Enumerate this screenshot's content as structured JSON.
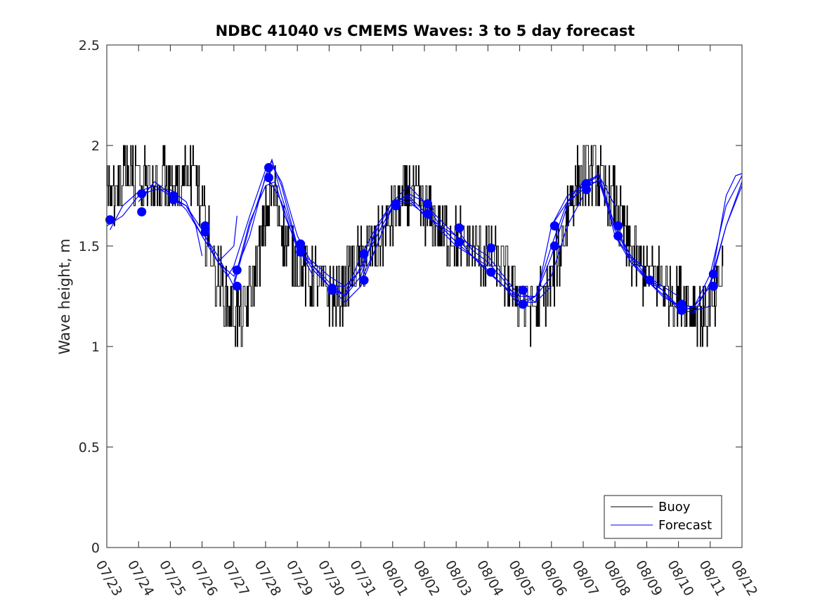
{
  "chart_data": {
    "type": "line",
    "title": "NDBC 41040 vs CMEMS Waves: 3 to 5 day forecast",
    "xlabel": "",
    "ylabel": "Wave height, m",
    "xlim_days": [
      0,
      20
    ],
    "ylim": [
      0,
      2.5
    ],
    "xticks": [
      "07/23",
      "07/24",
      "07/25",
      "07/26",
      "07/27",
      "07/28",
      "07/29",
      "07/30",
      "07/31",
      "08/01",
      "08/02",
      "08/03",
      "08/04",
      "08/05",
      "08/06",
      "08/07",
      "08/08",
      "08/09",
      "08/10",
      "08/11",
      "08/12"
    ],
    "yticks": [
      0,
      0.5,
      1,
      1.5,
      2,
      2.5
    ],
    "ytick_labels": [
      "0",
      "0.5",
      "1",
      "1.5",
      "2",
      "2.5"
    ],
    "grid": false,
    "legend": {
      "position": "bottom-right",
      "entries": [
        {
          "label": "Buoy",
          "color": "#000000"
        },
        {
          "label": "Forecast",
          "color": "#0000ff"
        }
      ]
    },
    "colors": {
      "buoy": "#000000",
      "forecast": "#0000ff"
    },
    "buoy_trend": [
      [
        0.0,
        1.75
      ],
      [
        0.3,
        1.78
      ],
      [
        0.6,
        1.85
      ],
      [
        1.0,
        1.85
      ],
      [
        1.5,
        1.8
      ],
      [
        2.0,
        1.82
      ],
      [
        2.5,
        1.85
      ],
      [
        2.8,
        1.85
      ],
      [
        3.0,
        1.65
      ],
      [
        3.3,
        1.45
      ],
      [
        3.6,
        1.3
      ],
      [
        3.9,
        1.2
      ],
      [
        4.2,
        1.12
      ],
      [
        4.5,
        1.25
      ],
      [
        4.8,
        1.45
      ],
      [
        5.1,
        1.75
      ],
      [
        5.3,
        1.75
      ],
      [
        5.6,
        1.55
      ],
      [
        6.0,
        1.42
      ],
      [
        6.4,
        1.35
      ],
      [
        6.8,
        1.3
      ],
      [
        7.2,
        1.25
      ],
      [
        7.5,
        1.3
      ],
      [
        7.8,
        1.4
      ],
      [
        8.1,
        1.45
      ],
      [
        8.5,
        1.5
      ],
      [
        8.8,
        1.6
      ],
      [
        9.2,
        1.7
      ],
      [
        9.6,
        1.75
      ],
      [
        10.0,
        1.68
      ],
      [
        10.4,
        1.6
      ],
      [
        10.8,
        1.55
      ],
      [
        11.2,
        1.52
      ],
      [
        11.6,
        1.48
      ],
      [
        12.0,
        1.45
      ],
      [
        12.4,
        1.4
      ],
      [
        12.8,
        1.3
      ],
      [
        13.2,
        1.2
      ],
      [
        13.6,
        1.2
      ],
      [
        14.0,
        1.32
      ],
      [
        14.3,
        1.5
      ],
      [
        14.6,
        1.75
      ],
      [
        15.0,
        1.85
      ],
      [
        15.3,
        1.88
      ],
      [
        15.6,
        1.8
      ],
      [
        16.0,
        1.7
      ],
      [
        16.4,
        1.5
      ],
      [
        16.8,
        1.4
      ],
      [
        17.2,
        1.35
      ],
      [
        17.6,
        1.3
      ],
      [
        18.0,
        1.25
      ],
      [
        18.4,
        1.2
      ],
      [
        18.8,
        1.15
      ],
      [
        19.1,
        1.2
      ],
      [
        19.4,
        1.4
      ]
    ],
    "forecast_runs": [
      [
        [
          0.0,
          1.6
        ],
        [
          0.5,
          1.65
        ],
        [
          1.0,
          1.75
        ],
        [
          1.5,
          1.78
        ],
        [
          2.0,
          1.78
        ],
        [
          2.5,
          1.72
        ],
        [
          2.8,
          1.6
        ],
        [
          3.0,
          1.45
        ]
      ],
      [
        [
          0.1,
          1.58
        ],
        [
          0.5,
          1.7
        ],
        [
          1.0,
          1.77
        ],
        [
          1.5,
          1.8
        ],
        [
          2.0,
          1.75
        ],
        [
          2.5,
          1.7
        ],
        [
          3.0,
          1.55
        ],
        [
          3.5,
          1.42
        ],
        [
          4.0,
          1.5
        ],
        [
          4.1,
          1.65
        ]
      ],
      [
        [
          1.0,
          1.72
        ],
        [
          1.5,
          1.82
        ],
        [
          2.0,
          1.76
        ],
        [
          2.5,
          1.68
        ],
        [
          3.0,
          1.55
        ],
        [
          3.5,
          1.42
        ],
        [
          3.8,
          1.35
        ],
        [
          4.0,
          1.4
        ],
        [
          4.5,
          1.65
        ],
        [
          5.0,
          1.88
        ],
        [
          5.2,
          1.92
        ],
        [
          5.5,
          1.8
        ],
        [
          6.0,
          1.5
        ],
        [
          6.5,
          1.35
        ]
      ],
      [
        [
          2.0,
          1.74
        ],
        [
          2.5,
          1.7
        ],
        [
          3.0,
          1.58
        ],
        [
          3.5,
          1.42
        ],
        [
          4.0,
          1.35
        ],
        [
          4.5,
          1.55
        ],
        [
          5.0,
          1.85
        ],
        [
          5.2,
          1.93
        ],
        [
          5.5,
          1.75
        ],
        [
          6.0,
          1.5
        ],
        [
          6.5,
          1.38
        ],
        [
          7.0,
          1.3
        ],
        [
          7.5,
          1.3
        ]
      ],
      [
        [
          3.0,
          1.57
        ],
        [
          3.5,
          1.45
        ],
        [
          4.0,
          1.3
        ],
        [
          4.5,
          1.6
        ],
        [
          5.0,
          1.84
        ],
        [
          5.2,
          1.9
        ],
        [
          5.5,
          1.82
        ],
        [
          6.0,
          1.55
        ],
        [
          6.5,
          1.4
        ],
        [
          7.0,
          1.32
        ],
        [
          7.5,
          1.25
        ],
        [
          8.0,
          1.35
        ],
        [
          8.5,
          1.6
        ]
      ],
      [
        [
          4.0,
          1.32
        ],
        [
          4.5,
          1.62
        ],
        [
          5.0,
          1.8
        ],
        [
          5.3,
          1.82
        ],
        [
          5.6,
          1.65
        ],
        [
          6.0,
          1.5
        ],
        [
          6.5,
          1.38
        ],
        [
          7.0,
          1.3
        ],
        [
          7.5,
          1.22
        ],
        [
          8.0,
          1.3
        ],
        [
          8.5,
          1.5
        ],
        [
          9.0,
          1.7
        ],
        [
          9.5,
          1.74
        ]
      ],
      [
        [
          5.0,
          1.86
        ],
        [
          5.5,
          1.72
        ],
        [
          6.0,
          1.48
        ],
        [
          6.5,
          1.4
        ],
        [
          7.0,
          1.3
        ],
        [
          7.5,
          1.25
        ],
        [
          8.0,
          1.4
        ],
        [
          8.5,
          1.55
        ],
        [
          9.0,
          1.7
        ],
        [
          9.5,
          1.76
        ],
        [
          10.0,
          1.72
        ],
        [
          10.3,
          1.68
        ]
      ],
      [
        [
          6.0,
          1.47
        ],
        [
          6.5,
          1.42
        ],
        [
          7.0,
          1.35
        ],
        [
          7.5,
          1.3
        ],
        [
          8.0,
          1.38
        ],
        [
          8.5,
          1.58
        ],
        [
          9.0,
          1.72
        ],
        [
          9.5,
          1.8
        ],
        [
          10.0,
          1.72
        ],
        [
          10.5,
          1.6
        ],
        [
          11.0,
          1.52
        ]
      ],
      [
        [
          7.0,
          1.28
        ],
        [
          7.5,
          1.26
        ],
        [
          8.0,
          1.45
        ],
        [
          8.5,
          1.6
        ],
        [
          9.0,
          1.72
        ],
        [
          9.5,
          1.75
        ],
        [
          10.0,
          1.67
        ],
        [
          10.5,
          1.58
        ],
        [
          11.0,
          1.5
        ],
        [
          11.5,
          1.45
        ],
        [
          12.0,
          1.4
        ]
      ],
      [
        [
          8.0,
          1.33
        ],
        [
          8.5,
          1.5
        ],
        [
          9.0,
          1.7
        ],
        [
          9.5,
          1.74
        ],
        [
          10.0,
          1.65
        ],
        [
          10.5,
          1.6
        ],
        [
          11.0,
          1.55
        ],
        [
          11.5,
          1.5
        ],
        [
          12.0,
          1.45
        ],
        [
          12.5,
          1.35
        ],
        [
          13.0,
          1.25
        ]
      ],
      [
        [
          9.0,
          1.7
        ],
        [
          9.5,
          1.72
        ],
        [
          10.0,
          1.66
        ],
        [
          10.5,
          1.6
        ],
        [
          11.0,
          1.52
        ],
        [
          11.5,
          1.45
        ],
        [
          12.0,
          1.37
        ],
        [
          12.5,
          1.3
        ],
        [
          13.0,
          1.22
        ],
        [
          13.5,
          1.22
        ],
        [
          14.0,
          1.3
        ]
      ],
      [
        [
          10.0,
          1.71
        ],
        [
          10.5,
          1.63
        ],
        [
          11.0,
          1.55
        ],
        [
          11.5,
          1.45
        ],
        [
          12.0,
          1.38
        ],
        [
          12.5,
          1.3
        ],
        [
          13.0,
          1.25
        ],
        [
          13.5,
          1.25
        ],
        [
          14.0,
          1.35
        ],
        [
          14.5,
          1.6
        ],
        [
          15.0,
          1.75
        ]
      ],
      [
        [
          11.0,
          1.59
        ],
        [
          11.5,
          1.48
        ],
        [
          12.0,
          1.42
        ],
        [
          12.5,
          1.33
        ],
        [
          13.0,
          1.22
        ],
        [
          13.5,
          1.25
        ],
        [
          14.0,
          1.45
        ],
        [
          14.5,
          1.7
        ],
        [
          15.0,
          1.8
        ],
        [
          15.5,
          1.85
        ],
        [
          16.0,
          1.7
        ]
      ],
      [
        [
          12.0,
          1.37
        ],
        [
          12.5,
          1.3
        ],
        [
          13.0,
          1.2
        ],
        [
          13.5,
          1.25
        ],
        [
          14.0,
          1.5
        ],
        [
          14.5,
          1.72
        ],
        [
          15.0,
          1.82
        ],
        [
          15.5,
          1.85
        ],
        [
          16.0,
          1.6
        ],
        [
          16.5,
          1.45
        ],
        [
          17.0,
          1.38
        ]
      ],
      [
        [
          13.0,
          1.28
        ],
        [
          13.5,
          1.22
        ],
        [
          14.0,
          1.6
        ],
        [
          14.5,
          1.75
        ],
        [
          15.0,
          1.8
        ],
        [
          15.5,
          1.86
        ],
        [
          16.0,
          1.55
        ],
        [
          16.5,
          1.42
        ],
        [
          17.0,
          1.35
        ],
        [
          17.5,
          1.3
        ],
        [
          18.0,
          1.25
        ]
      ],
      [
        [
          14.0,
          1.6
        ],
        [
          14.5,
          1.72
        ],
        [
          15.0,
          1.78
        ],
        [
          15.5,
          1.83
        ],
        [
          16.0,
          1.6
        ],
        [
          16.5,
          1.42
        ],
        [
          17.0,
          1.33
        ],
        [
          17.5,
          1.26
        ],
        [
          18.0,
          1.2
        ],
        [
          18.5,
          1.18
        ],
        [
          19.0,
          1.2
        ]
      ],
      [
        [
          15.0,
          1.81
        ],
        [
          15.5,
          1.82
        ],
        [
          16.0,
          1.58
        ],
        [
          16.5,
          1.45
        ],
        [
          17.0,
          1.35
        ],
        [
          17.5,
          1.28
        ],
        [
          18.0,
          1.2
        ],
        [
          18.5,
          1.2
        ],
        [
          19.0,
          1.3
        ],
        [
          19.5,
          1.6
        ],
        [
          20.0,
          1.82
        ]
      ],
      [
        [
          16.0,
          1.55
        ],
        [
          16.5,
          1.44
        ],
        [
          17.0,
          1.33
        ],
        [
          17.5,
          1.28
        ],
        [
          18.0,
          1.18
        ],
        [
          18.5,
          1.17
        ],
        [
          19.0,
          1.32
        ],
        [
          19.5,
          1.6
        ],
        [
          20.0,
          1.8
        ]
      ],
      [
        [
          17.0,
          1.33
        ],
        [
          17.5,
          1.25
        ],
        [
          18.0,
          1.2
        ],
        [
          18.5,
          1.2
        ],
        [
          19.0,
          1.36
        ],
        [
          19.5,
          1.7
        ],
        [
          20.0,
          1.85
        ]
      ],
      [
        [
          18.0,
          1.17
        ],
        [
          18.5,
          1.2
        ],
        [
          19.0,
          1.3
        ],
        [
          19.5,
          1.75
        ],
        [
          19.8,
          1.85
        ],
        [
          20.0,
          1.86
        ]
      ]
    ],
    "forecast_markers": [
      [
        0.1,
        1.63
      ],
      [
        1.1,
        1.76
      ],
      [
        1.1,
        1.67
      ],
      [
        2.1,
        1.75
      ],
      [
        2.1,
        1.73
      ],
      [
        3.1,
        1.6
      ],
      [
        3.1,
        1.57
      ],
      [
        4.1,
        1.38
      ],
      [
        4.1,
        1.3
      ],
      [
        5.1,
        1.89
      ],
      [
        5.1,
        1.84
      ],
      [
        6.1,
        1.51
      ],
      [
        6.1,
        1.47
      ],
      [
        7.1,
        1.29
      ],
      [
        7.1,
        1.28
      ],
      [
        8.1,
        1.46
      ],
      [
        8.1,
        1.33
      ],
      [
        9.1,
        1.71
      ],
      [
        9.1,
        1.7
      ],
      [
        10.1,
        1.71
      ],
      [
        10.1,
        1.66
      ],
      [
        11.1,
        1.59
      ],
      [
        11.1,
        1.52
      ],
      [
        12.1,
        1.49
      ],
      [
        12.1,
        1.37
      ],
      [
        13.1,
        1.28
      ],
      [
        13.1,
        1.21
      ],
      [
        14.1,
        1.6
      ],
      [
        14.1,
        1.5
      ],
      [
        15.1,
        1.81
      ],
      [
        15.1,
        1.78
      ],
      [
        16.1,
        1.6
      ],
      [
        16.1,
        1.55
      ],
      [
        17.1,
        1.33
      ],
      [
        18.1,
        1.21
      ],
      [
        18.1,
        1.18
      ],
      [
        19.1,
        1.36
      ],
      [
        19.1,
        1.3
      ]
    ]
  }
}
